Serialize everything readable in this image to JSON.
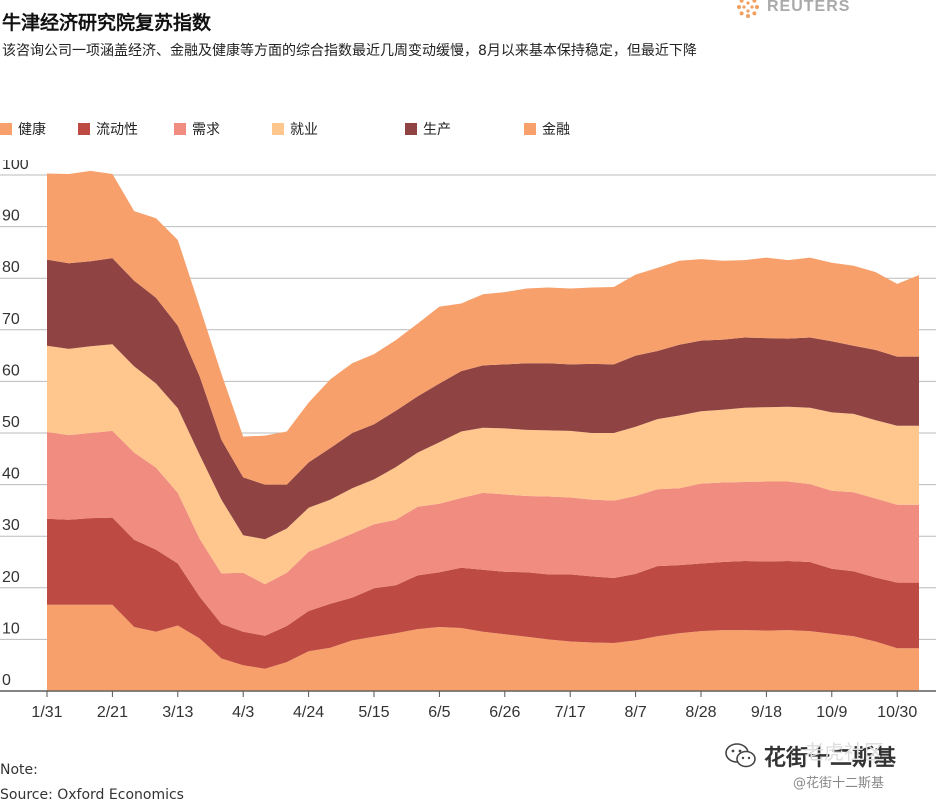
{
  "header": {
    "title": "牛津经济研究院复苏指数",
    "subtitle": "该咨询公司一项涵盖经济、金融及健康等方面的综合指数最近几周变动缓慢，8月以来基本保持稳定，但最近下降",
    "brand": "REUTERS"
  },
  "footer": {
    "note": "Note:",
    "source": "Source: Oxford Economics"
  },
  "watermark": {
    "main": "花街十二斯基",
    "faint": "老虎社区",
    "sub": "@花街十二斯基"
  },
  "icons": {
    "brand_logo": "reuters-dot-circle-icon",
    "wechat": "wechat-icon"
  },
  "chart_data": {
    "type": "area",
    "stacked": true,
    "title": "牛津经济研究院复苏指数",
    "xlabel": "",
    "ylabel": "",
    "ylim": [
      0,
      100
    ],
    "yticks": [
      0,
      10,
      20,
      30,
      40,
      50,
      60,
      70,
      80,
      90,
      100
    ],
    "grid": true,
    "legend_position": "top",
    "x": [
      "1/31",
      "2/7",
      "2/14",
      "2/21",
      "2/28",
      "3/6",
      "3/13",
      "3/20",
      "3/27",
      "4/3",
      "4/10",
      "4/17",
      "4/24",
      "5/1",
      "5/8",
      "5/15",
      "5/22",
      "5/29",
      "6/5",
      "6/12",
      "6/19",
      "6/26",
      "7/3",
      "7/10",
      "7/17",
      "7/24",
      "7/31",
      "8/7",
      "8/14",
      "8/21",
      "8/28",
      "9/4",
      "9/11",
      "9/18",
      "9/25",
      "10/2",
      "10/9",
      "10/16",
      "10/23",
      "10/30",
      "11/6"
    ],
    "xtick_labels": [
      "1/31",
      "2/21",
      "3/13",
      "4/3",
      "4/24",
      "5/15",
      "6/5",
      "6/26",
      "7/17",
      "8/7",
      "8/28",
      "9/18",
      "10/9",
      "10/30"
    ],
    "series": [
      {
        "name": "健康",
        "color": "#F7A06B",
        "values": [
          16.7,
          16.7,
          16.7,
          16.7,
          12.4,
          11.5,
          12.7,
          10.2,
          6.3,
          5.0,
          4.3,
          5.6,
          7.7,
          8.4,
          9.8,
          10.5,
          11.2,
          12.0,
          12.4,
          12.2,
          11.5,
          11.0,
          10.5,
          10.0,
          9.6,
          9.4,
          9.3,
          9.8,
          10.6,
          11.2,
          11.6,
          11.8,
          11.8,
          11.7,
          11.8,
          11.6,
          11.1,
          10.6,
          9.6,
          8.3,
          8.3
        ]
      },
      {
        "name": "流动性",
        "color": "#BE4B43",
        "values": [
          16.7,
          16.5,
          16.8,
          16.9,
          16.9,
          15.9,
          12.0,
          8.1,
          6.7,
          6.5,
          6.4,
          7.0,
          7.8,
          8.5,
          8.3,
          9.4,
          9.3,
          10.4,
          10.6,
          11.7,
          12.0,
          12.1,
          12.5,
          12.6,
          13.0,
          12.8,
          12.6,
          12.9,
          13.6,
          13.2,
          13.1,
          13.2,
          13.4,
          13.4,
          13.4,
          13.4,
          12.6,
          12.6,
          12.4,
          12.7,
          12.7
        ]
      },
      {
        "name": "需求",
        "color": "#F08C80",
        "values": [
          16.8,
          16.4,
          16.5,
          16.8,
          16.9,
          15.9,
          13.7,
          11.2,
          9.8,
          11.4,
          10.0,
          10.3,
          11.5,
          11.8,
          12.4,
          12.4,
          12.7,
          13.3,
          13.3,
          13.5,
          14.9,
          15.0,
          14.8,
          15.1,
          14.9,
          14.9,
          15.0,
          15.1,
          14.9,
          14.9,
          15.5,
          15.4,
          15.3,
          15.5,
          15.4,
          15.1,
          15.1,
          15.3,
          15.3,
          15.1,
          15.1
        ]
      },
      {
        "name": "就业",
        "color": "#FFC78D",
        "values": [
          16.7,
          16.7,
          16.8,
          16.8,
          16.7,
          16.3,
          16.4,
          16.3,
          14.3,
          7.3,
          8.7,
          8.6,
          8.5,
          8.4,
          8.8,
          8.7,
          10.2,
          10.5,
          11.9,
          12.9,
          12.6,
          12.8,
          12.8,
          12.8,
          12.9,
          12.9,
          13.1,
          13.4,
          13.6,
          14.1,
          14.0,
          14.1,
          14.4,
          14.4,
          14.5,
          14.8,
          15.2,
          15.2,
          15.2,
          15.3,
          15.3
        ]
      },
      {
        "name": "生产",
        "color": "#8F4443",
        "values": [
          16.7,
          16.6,
          16.5,
          16.7,
          16.6,
          16.6,
          16.0,
          15.2,
          11.6,
          11.2,
          10.6,
          8.5,
          8.8,
          10.0,
          10.7,
          10.7,
          10.9,
          10.9,
          11.4,
          11.7,
          12.1,
          12.4,
          12.9,
          13.0,
          12.9,
          13.4,
          13.3,
          13.8,
          13.2,
          13.7,
          13.7,
          13.6,
          13.6,
          13.4,
          13.2,
          13.6,
          13.8,
          13.2,
          13.6,
          13.4,
          13.4
        ]
      },
      {
        "name": "金融",
        "color": "#F7A06B",
        "values": [
          16.7,
          17.3,
          17.5,
          16.3,
          13.5,
          15.4,
          16.6,
          13.5,
          12.8,
          7.9,
          9.5,
          10.3,
          11.6,
          13.3,
          13.5,
          13.6,
          13.7,
          14.1,
          14.9,
          13.1,
          13.8,
          14.0,
          14.5,
          14.7,
          14.7,
          14.8,
          15.0,
          15.7,
          16.1,
          16.3,
          15.8,
          15.3,
          15.0,
          15.6,
          15.2,
          15.5,
          15.2,
          15.5,
          15.1,
          14.1,
          15.8
        ]
      }
    ]
  }
}
